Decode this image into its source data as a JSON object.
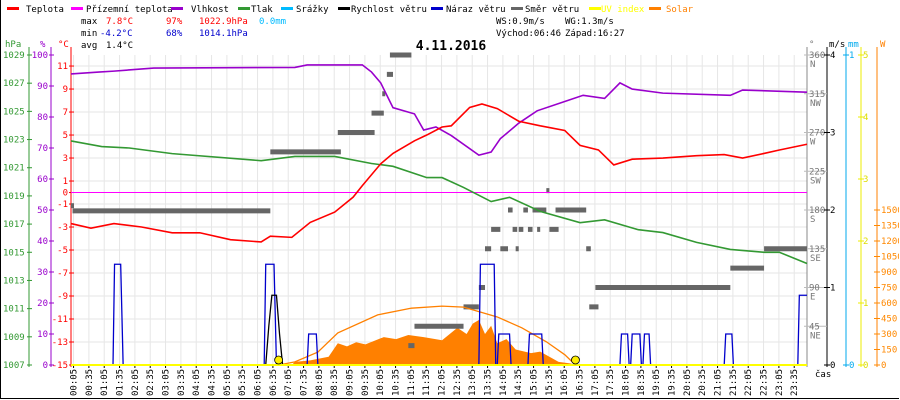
{
  "legend": [
    {
      "label": "Teplota",
      "color": "#ff0000"
    },
    {
      "label": "Přízemní teplota",
      "color": "#ff00ff"
    },
    {
      "label": "Vlhkost",
      "color": "#9900cc"
    },
    {
      "label": "Tlak",
      "color": "#339933"
    },
    {
      "label": "Srážky",
      "color": "#00bbff"
    },
    {
      "label": "Rychlost větru",
      "color": "#000000"
    },
    {
      "label": "Náraz větru",
      "color": "#0000cc"
    },
    {
      "label": "Směr větru",
      "color": "#666666"
    },
    {
      "label": "UV index",
      "color": "#ffff00"
    },
    {
      "label": "Solar",
      "color": "#ff8000"
    }
  ],
  "stats": {
    "max_label": "max",
    "max_temp": "7.8°C",
    "max_hum": "97%",
    "max_press": "1022.9hPa",
    "max_rain": "0.0mm",
    "min_label": "min",
    "min_temp": "-4.2°C",
    "min_hum": "68%",
    "min_press": "1014.1hPa",
    "avg_label": "avg",
    "avg_temp": "1.4°C",
    "ws": "WS:0.9m/s",
    "wg": "WG:1.3m/s",
    "sunrise": "Východ:06:46",
    "sunset": "Západ:16:27"
  },
  "chart_data": {
    "type": "line",
    "title": "4.11.2016",
    "xlabel": "čas",
    "xlim_hours": [
      0,
      24
    ],
    "x_ticks": [
      "00:05",
      "00:35",
      "01:05",
      "01:35",
      "02:05",
      "02:35",
      "03:05",
      "03:35",
      "04:05",
      "04:35",
      "05:05",
      "05:35",
      "06:05",
      "06:35",
      "07:05",
      "07:35",
      "08:05",
      "08:35",
      "09:05",
      "09:35",
      "10:05",
      "10:35",
      "11:05",
      "11:35",
      "12:05",
      "12:35",
      "13:05",
      "13:35",
      "14:05",
      "14:35",
      "15:05",
      "15:35",
      "16:05",
      "16:35",
      "17:05",
      "17:35",
      "18:05",
      "18:35",
      "19:05",
      "19:35",
      "20:05",
      "20:35",
      "21:05",
      "21:35",
      "22:05",
      "22:35",
      "23:05",
      "23:35"
    ],
    "axes": {
      "pressure": {
        "unit": "hPa",
        "range": [
          1007,
          1029
        ],
        "ticks": [
          "1029",
          "1027",
          "1025",
          "1023",
          "1021",
          "1019",
          "1017",
          "1015",
          "1013",
          "1011",
          "1009",
          "1007"
        ],
        "color": "#339933"
      },
      "humidity": {
        "unit": "%",
        "range": [
          0,
          100
        ],
        "ticks": [
          "100",
          "90",
          "80",
          "70",
          "60",
          "50",
          "40",
          "30",
          "20",
          "10",
          "0"
        ],
        "color": "#9900cc"
      },
      "temperature": {
        "unit": "°C",
        "range": [
          -15,
          11.96
        ],
        "ticks": [
          "11",
          "9",
          "7",
          "5",
          "3",
          "1",
          "0",
          "-1",
          "-3",
          "-5",
          "-7",
          "-9",
          "-11",
          "-13",
          "-15"
        ],
        "color": "#ff0000"
      },
      "direction": {
        "unit": "°",
        "range": [
          0,
          360
        ],
        "ticks": [
          [
            "360",
            "N"
          ],
          [
            "315",
            "NW"
          ],
          [
            "270",
            "W"
          ],
          [
            "225",
            "SW"
          ],
          [
            "180",
            "S"
          ],
          [
            "135",
            "SE"
          ],
          [
            "90",
            "E"
          ],
          [
            "45",
            "NE"
          ]
        ],
        "color": "#777777"
      },
      "wind": {
        "unit": "m/s",
        "range": [
          0,
          4
        ],
        "ticks": [
          "4",
          "3",
          "2",
          "1",
          "0"
        ],
        "color": "#000000"
      },
      "rain": {
        "unit": "mm",
        "range": [
          0,
          1
        ],
        "ticks": [
          "1",
          "0"
        ],
        "color": "#00aaee"
      },
      "uv": {
        "range": [
          0,
          5
        ],
        "ticks": [
          "5",
          "4",
          "3",
          "2",
          "1",
          "0"
        ],
        "color": "#eeee00"
      },
      "solar": {
        "unit": "W",
        "range": [
          0,
          3000
        ],
        "ticks": [
          "1500",
          "1350",
          "1200",
          "1050",
          "900",
          "750",
          "600",
          "450",
          "300",
          "150",
          "0"
        ],
        "color": "#ff8000"
      }
    },
    "series": {
      "temperature": [
        [
          0,
          -2.7
        ],
        [
          0.65,
          -3.1
        ],
        [
          1.4,
          -2.7
        ],
        [
          2.3,
          -3.0
        ],
        [
          3.3,
          -3.5
        ],
        [
          4.2,
          -3.5
        ],
        [
          5.2,
          -4.1
        ],
        [
          6.2,
          -4.3
        ],
        [
          6.5,
          -3.8
        ],
        [
          7.2,
          -3.9
        ],
        [
          7.8,
          -2.6
        ],
        [
          8.6,
          -1.7
        ],
        [
          9.2,
          -0.4
        ],
        [
          9.5,
          0.6
        ],
        [
          10.1,
          2.5
        ],
        [
          10.5,
          3.4
        ],
        [
          11.2,
          4.5
        ],
        [
          11.6,
          5.0
        ],
        [
          12.1,
          5.7
        ],
        [
          12.4,
          5.8
        ],
        [
          13.0,
          7.4
        ],
        [
          13.4,
          7.7
        ],
        [
          13.9,
          7.3
        ],
        [
          14.6,
          6.2
        ],
        [
          15.3,
          5.8
        ],
        [
          16.1,
          5.4
        ],
        [
          16.6,
          4.1
        ],
        [
          17.2,
          3.7
        ],
        [
          17.7,
          2.4
        ],
        [
          18.3,
          2.9
        ],
        [
          19.3,
          3.0
        ],
        [
          20.4,
          3.2
        ],
        [
          21.3,
          3.3
        ],
        [
          21.9,
          3.0
        ],
        [
          22.6,
          3.4
        ],
        [
          23.1,
          3.7
        ],
        [
          24,
          4.2
        ]
      ],
      "ground_temperature": [
        [
          0,
          0
        ],
        [
          24,
          0
        ]
      ],
      "humidity": [
        [
          0,
          93.9
        ],
        [
          0.9,
          94.5
        ],
        [
          1.4,
          94.8
        ],
        [
          2.7,
          95.8
        ],
        [
          7.3,
          96
        ],
        [
          7.7,
          96.8
        ],
        [
          9.5,
          96.8
        ],
        [
          9.8,
          94.5
        ],
        [
          10.1,
          91
        ],
        [
          10.5,
          83
        ],
        [
          11.2,
          81
        ],
        [
          11.5,
          75.8
        ],
        [
          11.9,
          76.8
        ],
        [
          12.4,
          74
        ],
        [
          13.3,
          67.7
        ],
        [
          13.7,
          68.7
        ],
        [
          14.0,
          73
        ],
        [
          14.6,
          78
        ],
        [
          15.2,
          82
        ],
        [
          16.1,
          85
        ],
        [
          16.7,
          87
        ],
        [
          17.4,
          86
        ],
        [
          17.9,
          91
        ],
        [
          18.3,
          89
        ],
        [
          19.3,
          87.7
        ],
        [
          21.5,
          87
        ],
        [
          21.9,
          88.7
        ],
        [
          24,
          88
        ]
      ],
      "pressure": [
        [
          0,
          1022.9
        ],
        [
          1,
          1022.5
        ],
        [
          1.9,
          1022.4
        ],
        [
          3.3,
          1022.0
        ],
        [
          6.2,
          1021.5
        ],
        [
          7.3,
          1021.8
        ],
        [
          8.6,
          1021.8
        ],
        [
          9.8,
          1021.3
        ],
        [
          10.5,
          1021.1
        ],
        [
          11.6,
          1020.3
        ],
        [
          12.1,
          1020.3
        ],
        [
          12.8,
          1019.6
        ],
        [
          13.7,
          1018.6
        ],
        [
          14.3,
          1018.9
        ],
        [
          15.3,
          1017.9
        ],
        [
          16.6,
          1017.1
        ],
        [
          17.4,
          1017.3
        ],
        [
          18.5,
          1016.6
        ],
        [
          19.3,
          1016.4
        ],
        [
          20.4,
          1015.7
        ],
        [
          21.5,
          1015.2
        ],
        [
          22.6,
          1015.0
        ],
        [
          23.1,
          1015.0
        ],
        [
          24,
          1014.2
        ]
      ],
      "rain": [
        [
          0,
          0
        ],
        [
          24,
          0
        ]
      ],
      "uv": [
        [
          0,
          0
        ],
        [
          24,
          0
        ]
      ],
      "wind_speed": [
        [
          0,
          0
        ],
        [
          6.35,
          0
        ],
        [
          6.45,
          0.5
        ],
        [
          6.55,
          0.9
        ],
        [
          6.7,
          0.9
        ],
        [
          6.8,
          0.4
        ],
        [
          6.9,
          0
        ],
        [
          24,
          0
        ]
      ],
      "wind_gust": [
        [
          0,
          0
        ],
        [
          1.37,
          0
        ],
        [
          1.42,
          1.3
        ],
        [
          1.62,
          1.3
        ],
        [
          1.7,
          0
        ],
        [
          6.3,
          0
        ],
        [
          6.35,
          1.3
        ],
        [
          6.62,
          1.3
        ],
        [
          6.7,
          0
        ],
        [
          7.7,
          0
        ],
        [
          7.75,
          0.4
        ],
        [
          8.0,
          0.4
        ],
        [
          8.05,
          0
        ],
        [
          13.3,
          0
        ],
        [
          13.35,
          1.3
        ],
        [
          13.8,
          1.3
        ],
        [
          13.85,
          0
        ],
        [
          13.9,
          0
        ],
        [
          13.95,
          0.4
        ],
        [
          14.3,
          0.4
        ],
        [
          14.35,
          0
        ],
        [
          14.9,
          0
        ],
        [
          14.95,
          0.4
        ],
        [
          15.35,
          0.4
        ],
        [
          15.4,
          0
        ],
        [
          17.9,
          0
        ],
        [
          17.95,
          0.4
        ],
        [
          18.15,
          0.4
        ],
        [
          18.2,
          0
        ],
        [
          18.25,
          0
        ],
        [
          18.3,
          0.4
        ],
        [
          18.55,
          0.4
        ],
        [
          18.6,
          0
        ],
        [
          18.65,
          0
        ],
        [
          18.7,
          0.4
        ],
        [
          18.85,
          0.4
        ],
        [
          18.9,
          0
        ],
        [
          21.3,
          0
        ],
        [
          21.35,
          0.4
        ],
        [
          21.55,
          0.4
        ],
        [
          21.6,
          0
        ],
        [
          23.7,
          0
        ],
        [
          23.75,
          0.9
        ],
        [
          24,
          0.9
        ]
      ],
      "solar": [
        [
          7.2,
          0
        ],
        [
          7.3,
          30
        ],
        [
          7.8,
          45
        ],
        [
          8.4,
          80
        ],
        [
          8.7,
          210
        ],
        [
          9.0,
          180
        ],
        [
          9.3,
          220
        ],
        [
          9.6,
          200
        ],
        [
          10.2,
          270
        ],
        [
          10.6,
          250
        ],
        [
          11.0,
          290
        ],
        [
          11.5,
          270
        ],
        [
          12.1,
          240
        ],
        [
          12.6,
          360
        ],
        [
          12.9,
          300
        ],
        [
          13.1,
          400
        ],
        [
          13.3,
          435
        ],
        [
          13.5,
          300
        ],
        [
          13.7,
          380
        ],
        [
          13.9,
          210
        ],
        [
          14.2,
          250
        ],
        [
          14.5,
          150
        ],
        [
          15.0,
          115
        ],
        [
          15.3,
          130
        ],
        [
          15.6,
          80
        ],
        [
          15.9,
          30
        ],
        [
          16.3,
          15
        ],
        [
          16.45,
          0
        ]
      ],
      "solar_theoretical": [
        [
          6.77,
          0
        ],
        [
          7.3,
          30
        ],
        [
          8.05,
          125
        ],
        [
          8.7,
          310
        ],
        [
          10.0,
          485
        ],
        [
          11.1,
          550
        ],
        [
          12.1,
          570
        ],
        [
          12.8,
          560
        ],
        [
          13.9,
          465
        ],
        [
          14.7,
          360
        ],
        [
          15.5,
          225
        ],
        [
          16.1,
          100
        ],
        [
          16.45,
          0
        ]
      ]
    },
    "wind_direction_segments": [
      [
        0,
        0.05,
        185
      ],
      [
        0.05,
        6.5,
        179
      ],
      [
        6.5,
        8.8,
        247.5
      ],
      [
        8.7,
        9.9,
        270
      ],
      [
        9.8,
        10.2,
        292.5
      ],
      [
        10.15,
        10.2,
        315
      ],
      [
        10.3,
        10.5,
        337.5
      ],
      [
        10.4,
        11.1,
        360
      ],
      [
        11.0,
        11.2,
        22.5
      ],
      [
        11.2,
        12.8,
        45
      ],
      [
        12.8,
        13.3,
        67.5
      ],
      [
        13.3,
        13.5,
        90
      ],
      [
        13.5,
        13.7,
        135
      ],
      [
        13.7,
        14.0,
        157.5
      ],
      [
        14.0,
        14.25,
        135
      ],
      [
        14.25,
        14.4,
        180
      ],
      [
        14.4,
        14.55,
        157.5
      ],
      [
        14.5,
        14.6,
        135
      ],
      [
        14.6,
        14.75,
        157.5
      ],
      [
        14.75,
        14.9,
        180
      ],
      [
        14.9,
        15.05,
        157.5
      ],
      [
        15.05,
        15.5,
        180
      ],
      [
        15.2,
        15.3,
        157.5
      ],
      [
        15.5,
        15.6,
        202.5
      ],
      [
        15.6,
        15.9,
        157.5
      ],
      [
        15.8,
        16.8,
        180
      ],
      [
        16.8,
        16.95,
        135
      ],
      [
        16.9,
        17.2,
        67.5
      ],
      [
        17.1,
        21.5,
        90
      ],
      [
        21.5,
        22.6,
        112.5
      ],
      [
        22.6,
        24,
        135
      ]
    ],
    "sun_markers": [
      6.77,
      16.45
    ],
    "grid": true
  }
}
